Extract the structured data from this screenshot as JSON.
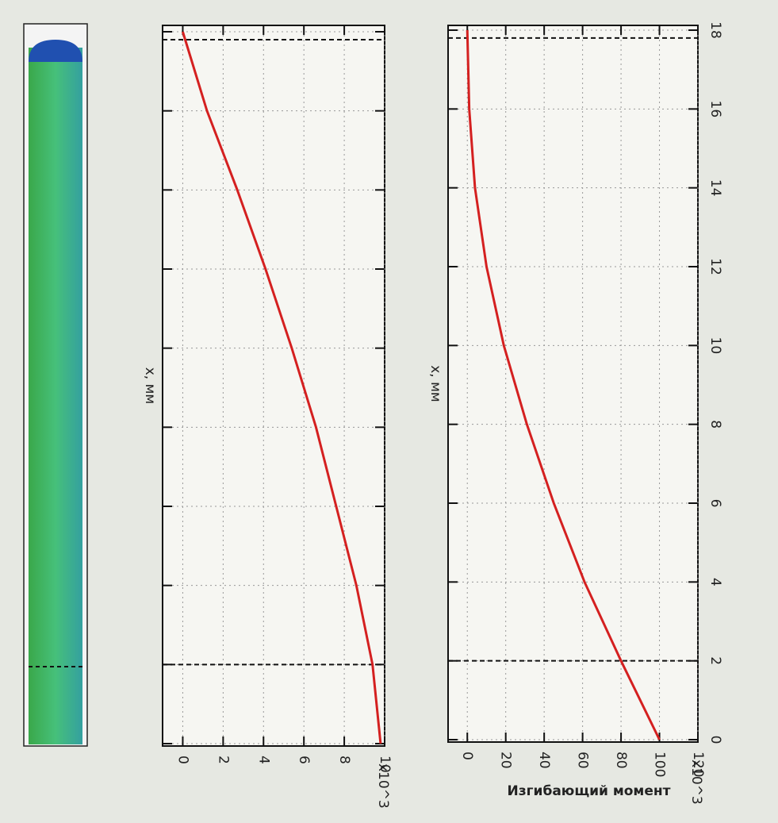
{
  "chart_data": [
    {
      "type": "line",
      "ylabel": "Изгибающий момент",
      "xlabel": "x, мм",
      "y_multiplier": "x10^3",
      "x": [
        0,
        2,
        4,
        6,
        8,
        10,
        12,
        14,
        16,
        18
      ],
      "series": [
        {
          "color": "#d42020",
          "values": [
            100,
            80,
            61,
            45,
            31,
            19,
            10,
            4,
            1,
            0
          ]
        }
      ],
      "xlim": [
        0,
        18
      ],
      "xticks": [
        0,
        2,
        4,
        6,
        8,
        10,
        12,
        14,
        16,
        18
      ],
      "ylim": [
        -10,
        120
      ],
      "yticks": [
        0,
        20,
        40,
        60,
        80,
        100,
        120
      ],
      "dashed_lines": [
        2,
        17.8
      ],
      "grid": true
    },
    {
      "type": "line",
      "xlabel": "x, мм",
      "y_multiplier": "x10^3",
      "x": [
        0,
        2,
        4,
        6,
        8,
        10,
        12,
        14,
        16,
        18
      ],
      "series": [
        {
          "color": "#d42020",
          "values": [
            9.8,
            9.4,
            8.6,
            7.6,
            6.6,
            5.4,
            4.1,
            2.7,
            1.2,
            0
          ]
        }
      ],
      "xlim": [
        0,
        18
      ],
      "xticks": [
        0,
        2,
        4,
        6,
        8,
        10,
        12,
        14,
        16,
        18
      ],
      "ylim": [
        -1,
        10
      ],
      "yticks": [
        0,
        2,
        4,
        6,
        8,
        10
      ],
      "dashed_lines": [
        2,
        17.8
      ],
      "grid": true
    }
  ]
}
